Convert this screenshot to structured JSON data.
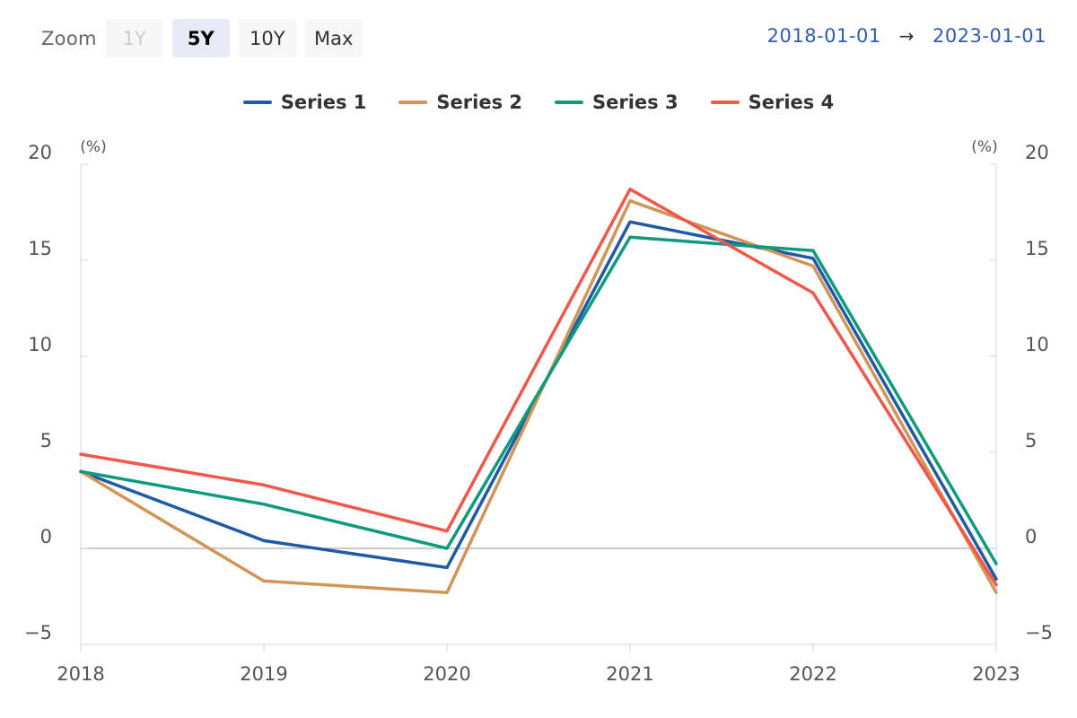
{
  "zoom": {
    "label": "Zoom",
    "buttons": [
      {
        "label": "1Y",
        "state": "disabled"
      },
      {
        "label": "5Y",
        "state": "selected"
      },
      {
        "label": "10Y",
        "state": "normal"
      },
      {
        "label": "Max",
        "state": "normal"
      }
    ]
  },
  "range": {
    "from": "2018-01-01",
    "arrow": "→",
    "to": "2023-01-01"
  },
  "chart_data": {
    "type": "line",
    "x": [
      "2018",
      "2019",
      "2020",
      "2021",
      "2022",
      "2023"
    ],
    "ylim": [
      -5,
      20
    ],
    "yticks": [
      "−5",
      "0",
      "5",
      "10",
      "15",
      "20"
    ],
    "y_unit": "(%)",
    "grid": false,
    "legend": "top-center",
    "series": [
      {
        "name": "Series 1",
        "color": "#1f5aa6",
        "values": [
          4.0,
          0.4,
          -1.0,
          17.0,
          15.1,
          -1.6
        ]
      },
      {
        "name": "Series 2",
        "color": "#d19557",
        "values": [
          4.0,
          -1.7,
          -2.3,
          18.1,
          14.7,
          -2.3
        ]
      },
      {
        "name": "Series 3",
        "color": "#0e9a7d",
        "values": [
          4.0,
          2.3,
          0.0,
          16.2,
          15.5,
          -0.8
        ]
      },
      {
        "name": "Series 4",
        "color": "#f2584a",
        "values": [
          4.9,
          3.3,
          0.9,
          18.7,
          13.3,
          -1.9
        ]
      }
    ]
  }
}
